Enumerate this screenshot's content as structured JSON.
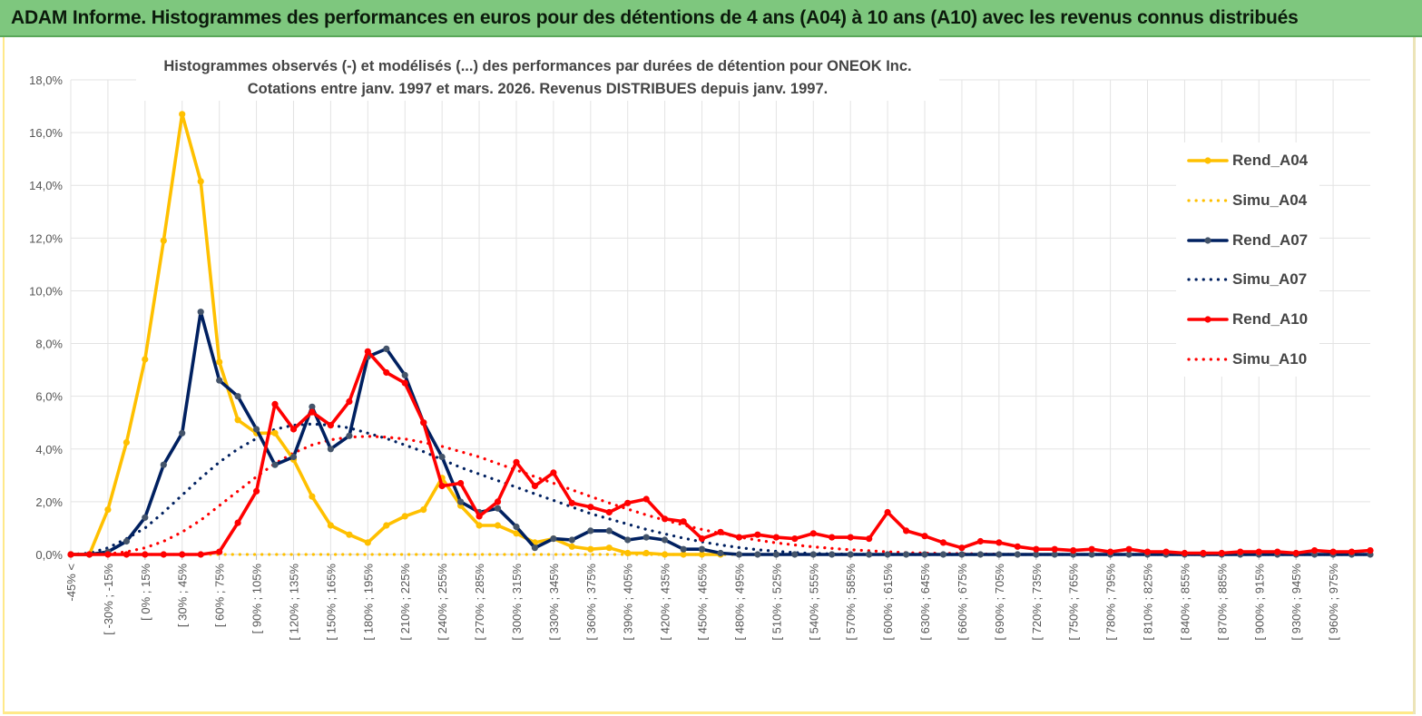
{
  "banner": {
    "title": "ADAM Informe. Histogrammes des performances en euros pour des détentions de 4 ans (A04) à 10 ans (A10) avec les revenus connus distribués"
  },
  "chart_data": {
    "type": "line",
    "title_line1": "Histogrammes observés (-) et modélisés (...) des performances par durées de détention pour ONEOK Inc.",
    "title_line2": "Cotations entre janv. 1997 et mars. 2026. Revenus DISTRIBUES depuis janv. 1997.",
    "ylim": [
      0,
      18
    ],
    "y_ticks": [
      "0,0%",
      "2,0%",
      "4,0%",
      "6,0%",
      "8,0%",
      "10,0%",
      "12,0%",
      "14,0%",
      "16,0%",
      "18,0%"
    ],
    "x_tick_labels": [
      "-45% <",
      "[ -30% ; -15%",
      "[ 0% ; 15%",
      "[ 30% ; 45%",
      "[ 60% ; 75%",
      "[ 90% ; 105%",
      "[ 120% ; 135%",
      "[ 150% ; 165%",
      "[ 180% ; 195%",
      "[ 210% ; 225%",
      "[ 240% ; 255%",
      "[ 270% ; 285%",
      "[ 300% ; 315%",
      "[ 330% ; 345%",
      "[ 360% ; 375%",
      "[ 390% ; 405%",
      "[ 420% ; 435%",
      "[ 450% ; 465%",
      "[ 480% ; 495%",
      "[ 510% ; 525%",
      "[ 540% ; 555%",
      "[ 570% ; 585%",
      "[ 600% ; 615%",
      "[ 630% ; 645%",
      "[ 660% ; 675%",
      "[ 690% ; 705%",
      "[ 720% ; 735%",
      "[ 750% ; 765%",
      "[ 780% ; 795%",
      "[ 810% ; 825%",
      "[ 840% ; 855%",
      "[ 870% ; 885%",
      "[ 900% ; 915%",
      "[ 930% ; 945%",
      "[ 960% ; 975%"
    ],
    "grid": true,
    "legend_position": "right",
    "series": [
      {
        "name": "Rend_A04",
        "color": "#ffc000",
        "style": "solid",
        "values": [
          0,
          0,
          1.7,
          4.25,
          7.4,
          11.9,
          16.7,
          14.15,
          7.3,
          5.1,
          4.6,
          4.6,
          3.6,
          2.2,
          1.1,
          0.75,
          0.45,
          1.1,
          1.45,
          1.7,
          2.9,
          1.85,
          1.1,
          1.1,
          0.8,
          0.45,
          0.6,
          0.3,
          0.2,
          0.25,
          0.05,
          0.05,
          0,
          0,
          0,
          0
        ]
      },
      {
        "name": "Simu_A04",
        "color": "#ffc000",
        "style": "dotted",
        "values": [
          0,
          0,
          0,
          0,
          0,
          0,
          0,
          0,
          0,
          0,
          0,
          0,
          0,
          0,
          0,
          0,
          0,
          0,
          0,
          0,
          0,
          0,
          0,
          0,
          0,
          0,
          0,
          0,
          0,
          0,
          0,
          0,
          0,
          0,
          0,
          0,
          0,
          0,
          0,
          0,
          0,
          0,
          0,
          0,
          0,
          0,
          0,
          0,
          0,
          0,
          0,
          0,
          0,
          0,
          0,
          0,
          0,
          0,
          0,
          0,
          0,
          0,
          0,
          0,
          0,
          0,
          0,
          0,
          0,
          0,
          0
        ]
      },
      {
        "name": "Rend_A07",
        "color": "#002060",
        "style": "solid",
        "values": [
          0,
          0,
          0.1,
          0.5,
          1.4,
          3.4,
          4.6,
          9.2,
          6.6,
          6.0,
          4.75,
          3.4,
          3.7,
          5.6,
          4.0,
          4.5,
          7.5,
          7.8,
          6.8,
          5.0,
          3.7,
          2.0,
          1.6,
          1.75,
          1.05,
          0.25,
          0.6,
          0.55,
          0.9,
          0.9,
          0.55,
          0.65,
          0.55,
          0.2,
          0.2,
          0.05,
          0,
          0,
          0,
          0,
          0,
          0,
          0,
          0,
          0,
          0,
          0,
          0,
          0,
          0,
          0,
          0,
          0,
          0,
          0,
          0,
          0,
          0,
          0,
          0,
          0,
          0,
          0,
          0,
          0,
          0,
          0,
          0,
          0,
          0,
          0
        ]
      },
      {
        "name": "Simu_A07",
        "color": "#002060",
        "style": "dotted",
        "values": [
          0,
          0.05,
          0.25,
          0.6,
          1.0,
          1.6,
          2.25,
          2.9,
          3.5,
          4.0,
          4.4,
          4.75,
          4.9,
          4.95,
          4.9,
          4.8,
          4.6,
          4.4,
          4.15,
          3.9,
          3.6,
          3.3,
          3.05,
          2.8,
          2.55,
          2.3,
          2.05,
          1.8,
          1.55,
          1.35,
          1.15,
          0.95,
          0.78,
          0.62,
          0.48,
          0.36,
          0.26,
          0.18,
          0.12,
          0.07,
          0.04,
          0.02,
          0.01,
          0,
          0,
          0,
          0,
          0,
          0,
          0,
          0,
          0,
          0,
          0,
          0,
          0,
          0,
          0,
          0,
          0,
          0,
          0,
          0,
          0,
          0,
          0,
          0,
          0,
          0,
          0,
          0
        ]
      },
      {
        "name": "Rend_A10",
        "color": "#ff0000",
        "style": "solid",
        "values": [
          0,
          0,
          0,
          0,
          0,
          0,
          0,
          0,
          0.1,
          1.2,
          2.4,
          5.7,
          4.75,
          5.4,
          4.9,
          5.8,
          7.7,
          6.9,
          6.5,
          5.0,
          2.6,
          2.7,
          1.45,
          2.0,
          3.5,
          2.6,
          3.1,
          1.95,
          1.8,
          1.6,
          1.95,
          2.1,
          1.35,
          1.25,
          0.6,
          0.85,
          0.65,
          0.75,
          0.65,
          0.6,
          0.8,
          0.65,
          0.65,
          0.6,
          1.6,
          0.9,
          0.7,
          0.45,
          0.25,
          0.5,
          0.45,
          0.3,
          0.2,
          0.2,
          0.15,
          0.2,
          0.1,
          0.2,
          0.1,
          0.1,
          0.05,
          0.05,
          0.05,
          0.1,
          0.1,
          0.1,
          0.05,
          0.15,
          0.1,
          0.1,
          0.15
        ]
      },
      {
        "name": "Simu_A10",
        "color": "#ff0000",
        "style": "dotted",
        "values": [
          0,
          0,
          0.02,
          0.1,
          0.25,
          0.5,
          0.85,
          1.3,
          1.85,
          2.4,
          2.95,
          3.45,
          3.85,
          4.15,
          4.35,
          4.45,
          4.48,
          4.45,
          4.38,
          4.25,
          4.1,
          3.9,
          3.7,
          3.45,
          3.2,
          2.95,
          2.7,
          2.45,
          2.2,
          1.95,
          1.72,
          1.5,
          1.3,
          1.12,
          0.95,
          0.8,
          0.66,
          0.54,
          0.44,
          0.36,
          0.29,
          0.23,
          0.18,
          0.14,
          0.1,
          0.07,
          0.05,
          0.04,
          0.03,
          0.02,
          0.01,
          0,
          0,
          0,
          0,
          0,
          0,
          0,
          0,
          0,
          0,
          0,
          0,
          0,
          0,
          0,
          0,
          0,
          0,
          0,
          0
        ]
      }
    ]
  }
}
